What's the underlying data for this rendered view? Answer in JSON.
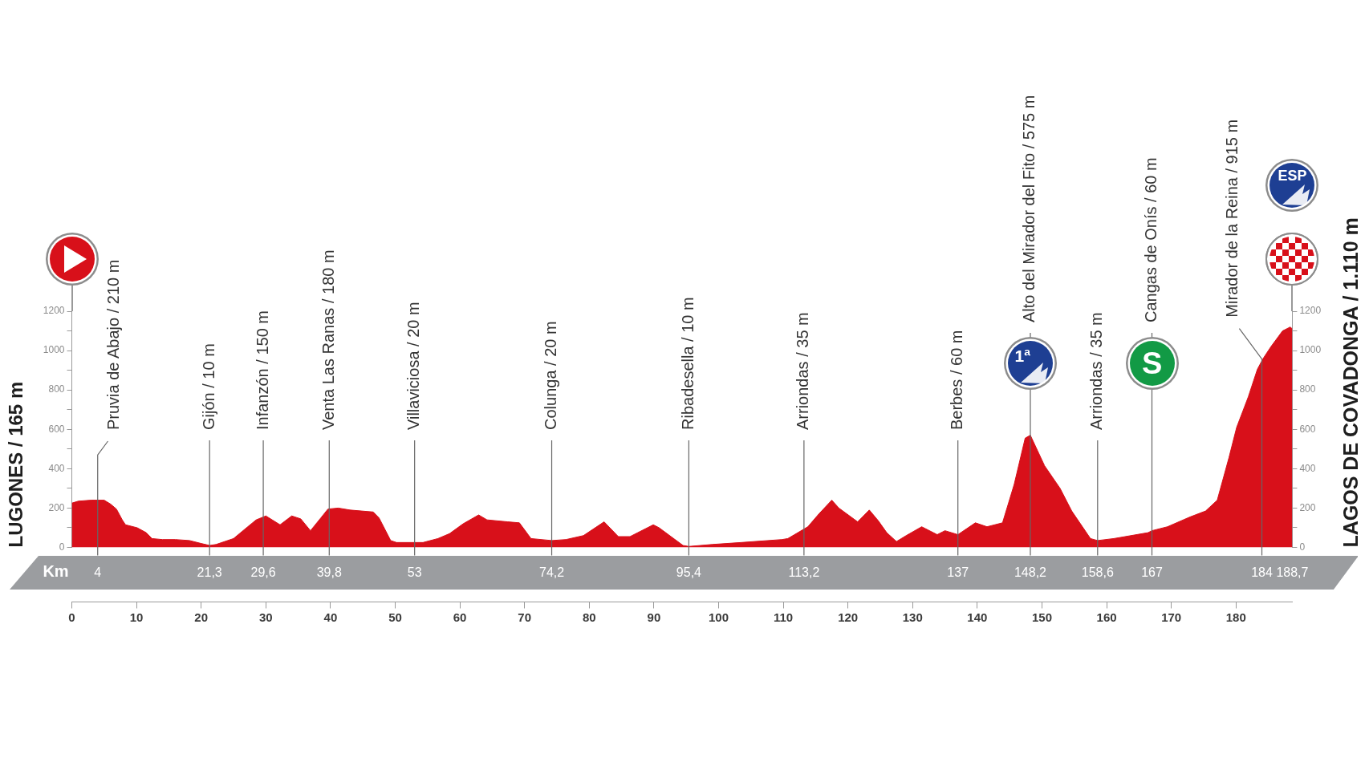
{
  "chart_data": {
    "type": "area",
    "x": [
      0,
      1,
      3,
      5,
      6,
      6.9,
      7.8,
      8.3,
      10.1,
      11.5,
      12.4,
      14,
      16,
      18.2,
      20,
      21.3,
      22.3,
      25,
      27.2,
      28.5,
      30,
      32.2,
      34,
      35.4,
      36.9,
      38.5,
      39.6,
      41.2,
      43,
      46.6,
      47.5,
      49.3,
      50.2,
      54.3,
      56.6,
      58.4,
      60.5,
      62.9,
      64.2,
      67.4,
      69.2,
      71,
      74.2,
      76.4,
      79.1,
      82.3,
      84.5,
      86.3,
      89.9,
      90.8,
      94.5,
      95.4,
      99,
      103.5,
      109.8,
      110.7,
      112,
      113.8,
      115.5,
      117.5,
      118.6,
      121.5,
      123.3,
      124.7,
      126,
      127.5,
      129,
      131.4,
      133.8,
      135,
      137,
      139.7,
      141.5,
      143.9,
      145.7,
      147.4,
      148.2,
      150.4,
      152.8,
      154.6,
      157.5,
      158.6,
      161.1,
      166.4,
      167,
      169.4,
      172.9,
      175.3,
      177.1,
      178.9,
      180.1,
      181.9,
      183.3,
      184.2,
      185.4,
      187.2,
      188.4,
      188.7
    ],
    "values": [
      225,
      235,
      240,
      240,
      220,
      195,
      140,
      115,
      100,
      75,
      45,
      40,
      40,
      35,
      20,
      10,
      15,
      45,
      105,
      140,
      160,
      115,
      160,
      145,
      85,
      150,
      195,
      200,
      190,
      180,
      150,
      35,
      25,
      25,
      45,
      70,
      120,
      165,
      140,
      130,
      125,
      45,
      35,
      40,
      60,
      130,
      55,
      55,
      115,
      100,
      10,
      5,
      15,
      25,
      40,
      45,
      70,
      105,
      170,
      240,
      200,
      130,
      190,
      135,
      75,
      30,
      60,
      105,
      65,
      85,
      65,
      125,
      105,
      125,
      320,
      555,
      570,
      415,
      300,
      185,
      45,
      35,
      45,
      75,
      85,
      105,
      155,
      185,
      240,
      455,
      610,
      765,
      905,
      960,
      1020,
      1100,
      1120,
      1110
    ],
    "color": "#d8101a",
    "xlim": [
      0,
      188.7
    ],
    "xticks": [
      0,
      10,
      20,
      30,
      40,
      50,
      60,
      70,
      80,
      90,
      100,
      110,
      120,
      130,
      140,
      150,
      160,
      170,
      180
    ],
    "x2lim": [
      0,
      188.7
    ],
    "x2ticks": [
      4,
      {
        "value": 21.3,
        "label": "21,3"
      },
      {
        "value": 29.6,
        "label": "29,6"
      },
      {
        "value": 39.8,
        "label": "39,8"
      },
      53,
      {
        "value": 74.2,
        "label": "74,2"
      },
      {
        "value": 95.4,
        "label": "95,4"
      },
      {
        "value": 113.2,
        "label": "113,2"
      },
      137,
      {
        "value": 148.2,
        "label": "148,2"
      },
      {
        "value": 158.6,
        "label": "158,6"
      },
      167,
      184,
      {
        "value": 188.7,
        "label": "188,7"
      }
    ],
    "x2label": "Km",
    "ylim": [
      0,
      1200
    ],
    "yticks": [
      0,
      {
        "value": 100,
        "label": null
      },
      200,
      {
        "value": 300,
        "label": null
      },
      400,
      {
        "value": 500,
        "label": null
      },
      600,
      {
        "value": 700,
        "label": null
      },
      800,
      {
        "value": 900,
        "label": null
      },
      1000,
      {
        "value": 1100,
        "label": null
      },
      1200
    ],
    "y2lim": [
      0,
      1200
    ],
    "y2ticks": [
      0,
      {
        "value": 100,
        "label": null
      },
      200,
      {
        "value": 300,
        "label": null
      },
      400,
      {
        "value": 500,
        "label": null
      },
      600,
      {
        "value": 700,
        "label": null
      },
      800,
      {
        "value": 900,
        "label": null
      },
      1000,
      {
        "value": 1100,
        "label": null
      },
      1200
    ],
    "ylabel": "LUGONES / 165 m",
    "y2label": "LAGOS DE COVADONGA / 1.110 m",
    "ref_lines": [
      {
        "axis": "x",
        "value": 4,
        "label": "Pruvia de Abajo / 210 m",
        "color": "#666666"
      },
      {
        "axis": "x",
        "value": 21.3,
        "label": "Gijón / 10 m",
        "color": "#666666"
      },
      {
        "axis": "x",
        "value": 29.6,
        "label": "Infanzón / 150 m",
        "color": "#666666"
      },
      {
        "axis": "x",
        "value": 39.8,
        "label": "Venta Las Ranas / 180 m",
        "color": "#666666"
      },
      {
        "axis": "x",
        "value": 53,
        "label": "Villaviciosa / 20 m",
        "color": "#666666"
      },
      {
        "axis": "x",
        "value": 74.2,
        "label": "Colunga / 20 m",
        "color": "#666666"
      },
      {
        "axis": "x",
        "value": 95.4,
        "label": "Ribadesella / 10 m",
        "color": "#666666"
      },
      {
        "axis": "x",
        "value": 113.2,
        "label": "Arriondas / 35 m",
        "color": "#666666"
      },
      {
        "axis": "x",
        "value": 137,
        "label": "Berbes / 60 m",
        "color": "#666666"
      },
      {
        "axis": "x",
        "value": 148.2,
        "label": "Alto del Mirador del Fito / 575 m",
        "color": "#666666"
      },
      {
        "axis": "x",
        "value": 158.6,
        "label": "Arriondas / 35 m",
        "color": "#666666"
      },
      {
        "axis": "x",
        "value": 167,
        "label": "Cangas de Onís / 60 m",
        "color": "#666666"
      },
      {
        "axis": "x",
        "value": 184,
        "label": "Mirador de la Reina / 915 m",
        "color": "#666666"
      }
    ],
    "annotations": [
      "1ª",
      "S",
      "ESP"
    ]
  }
}
